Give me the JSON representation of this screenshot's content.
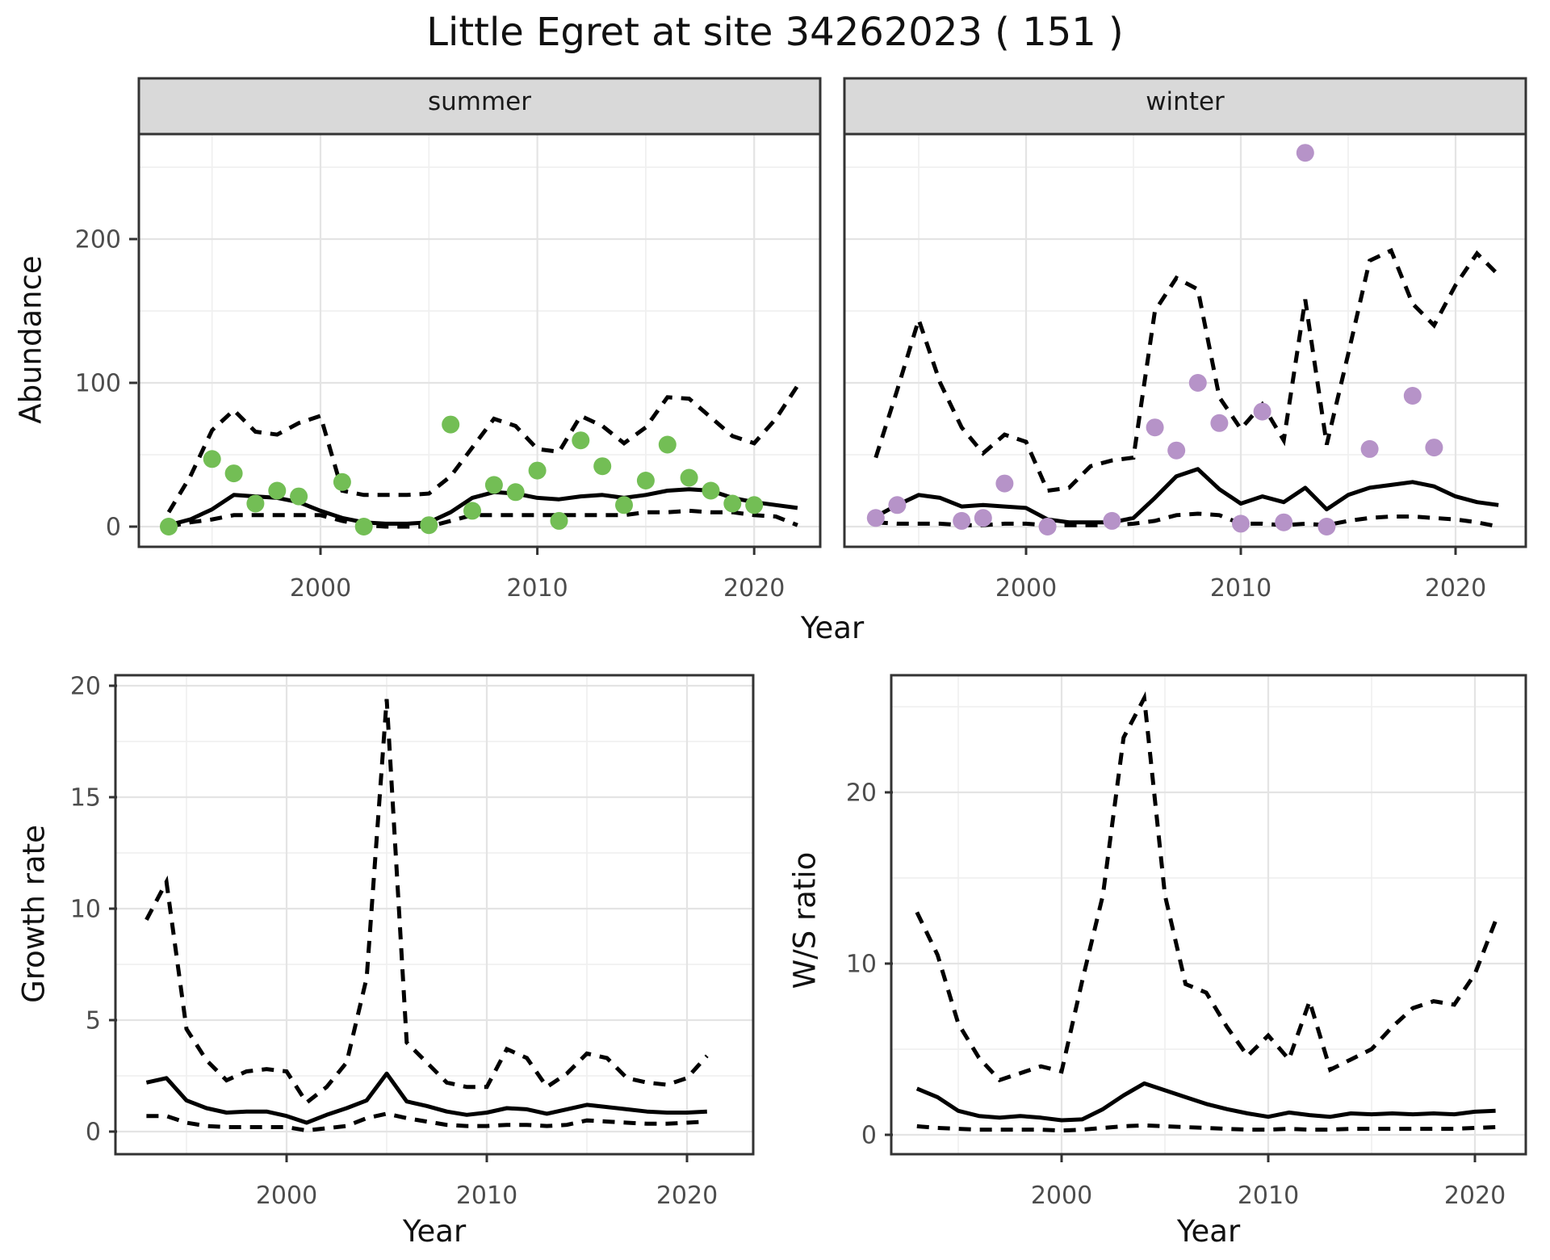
{
  "title": "Little Egret at site 34262023 ( 151 )",
  "colors": {
    "summer_point": "#73BE55",
    "winter_point": "#B693C8",
    "line": "#000000",
    "strip_bg": "#D9D9D9",
    "panel_border": "#333333",
    "grid_major": "#E4E4E4",
    "grid_minor": "#F0F0F0",
    "tick_text": "#4D4D4D"
  },
  "chart_data": [
    {
      "id": "abundance_by_season",
      "type": "line",
      "xlabel": "Year",
      "ylabel": "Abundance",
      "yticks": [
        0,
        100,
        200
      ],
      "yminor": [
        50,
        150,
        250
      ],
      "xticks": [
        2000,
        2010,
        2020
      ],
      "xminor": [
        1995,
        2005,
        2015
      ],
      "ylim": [
        -14,
        273
      ],
      "xlim": [
        1991.5,
        2023.2
      ],
      "legend": "none",
      "facets": [
        {
          "label": "summer",
          "point_color": "#73BE55",
          "points": {
            "years": [
              1993,
              1995,
              1996,
              1997,
              1998,
              1999,
              2001,
              2002,
              2005,
              2006,
              2007,
              2008,
              2009,
              2010,
              2011,
              2012,
              2013,
              2014,
              2015,
              2016,
              2017,
              2018,
              2019,
              2020
            ],
            "values": [
              0,
              47,
              37,
              16,
              25,
              21,
              31,
              0,
              1,
              71,
              11,
              29,
              24,
              39,
              4,
              60,
              42,
              15,
              32,
              57,
              34,
              25,
              16,
              15
            ]
          },
          "mean": {
            "years": [
              1993,
              1994,
              1995,
              1996,
              1997,
              1998,
              1999,
              2000,
              2001,
              2002,
              2003,
              2004,
              2005,
              2006,
              2007,
              2008,
              2009,
              2010,
              2011,
              2012,
              2013,
              2014,
              2015,
              2016,
              2017,
              2018,
              2019,
              2020,
              2021,
              2022
            ],
            "values": [
              1,
              5,
              12,
              22,
              21,
              20,
              17,
              11,
              6,
              3,
              2,
              2,
              3,
              10,
              20,
              24,
              23,
              20,
              19,
              21,
              22,
              20,
              22,
              25,
              26,
              25,
              20,
              17,
              15,
              13
            ]
          },
          "upper": {
            "years": [
              1993,
              1994,
              1995,
              1996,
              1997,
              1998,
              1999,
              2000,
              2001,
              2002,
              2003,
              2004,
              2005,
              2006,
              2007,
              2008,
              2009,
              2010,
              2011,
              2012,
              2013,
              2014,
              2015,
              2016,
              2017,
              2018,
              2019,
              2020,
              2021,
              2022
            ],
            "values": [
              10,
              35,
              67,
              81,
              66,
              64,
              72,
              77,
              25,
              22,
              22,
              22,
              23,
              35,
              55,
              75,
              70,
              54,
              52,
              77,
              70,
              58,
              69,
              90,
              89,
              76,
              63,
              58,
              75,
              98
            ]
          },
          "lower": {
            "years": [
              1993,
              1994,
              1995,
              1996,
              1997,
              1998,
              1999,
              2000,
              2001,
              2002,
              2003,
              2004,
              2005,
              2006,
              2007,
              2008,
              2009,
              2010,
              2011,
              2012,
              2013,
              2014,
              2015,
              2016,
              2017,
              2018,
              2019,
              2020,
              2021,
              2022
            ],
            "values": [
              0,
              3,
              5,
              8,
              8,
              8,
              8,
              8,
              4,
              1,
              0,
              0,
              0,
              4,
              8,
              8,
              8,
              8,
              8,
              8,
              8,
              8,
              10,
              10,
              11,
              10,
              10,
              8,
              7,
              1
            ]
          }
        },
        {
          "label": "winter",
          "point_color": "#B693C8",
          "points": {
            "years": [
              1993,
              1994,
              1997,
              1998,
              1999,
              2001,
              2004,
              2006,
              2007,
              2008,
              2009,
              2010,
              2011,
              2012,
              2013,
              2014,
              2016,
              2018,
              2019
            ],
            "values": [
              6,
              15,
              4,
              6,
              30,
              0,
              4,
              69,
              53,
              100,
              72,
              2,
              80,
              3,
              260,
              0,
              54,
              91,
              55
            ]
          },
          "mean": {
            "years": [
              1993,
              1994,
              1995,
              1996,
              1997,
              1998,
              1999,
              2000,
              2001,
              2002,
              2003,
              2004,
              2005,
              2006,
              2007,
              2008,
              2009,
              2010,
              2011,
              2012,
              2013,
              2014,
              2015,
              2016,
              2017,
              2018,
              2019,
              2020,
              2021,
              2022
            ],
            "values": [
              7,
              15,
              22,
              20,
              14,
              15,
              14,
              13,
              5,
              3,
              3,
              3,
              6,
              20,
              35,
              40,
              26,
              16,
              21,
              17,
              27,
              12,
              22,
              27,
              29,
              31,
              28,
              21,
              17,
              15
            ]
          },
          "upper": {
            "years": [
              1993,
              1994,
              1995,
              1996,
              1997,
              1998,
              1999,
              2000,
              2001,
              2002,
              2003,
              2004,
              2005,
              2006,
              2007,
              2008,
              2009,
              2010,
              2011,
              2012,
              2013,
              2014,
              2015,
              2016,
              2017,
              2018,
              2019,
              2020,
              2021,
              2022
            ],
            "values": [
              48,
              95,
              144,
              100,
              69,
              51,
              64,
              59,
              25,
              27,
              42,
              46,
              48,
              150,
              173,
              165,
              90,
              68,
              85,
              60,
              158,
              57,
              120,
              185,
              192,
              155,
              140,
              168,
              190,
              175
            ]
          },
          "lower": {
            "years": [
              1993,
              1994,
              1995,
              1996,
              1997,
              1998,
              1999,
              2000,
              2001,
              2002,
              2003,
              2004,
              2005,
              2006,
              2007,
              2008,
              2009,
              2010,
              2011,
              2012,
              2013,
              2014,
              2015,
              2016,
              2017,
              2018,
              2019,
              2020,
              2021,
              2022
            ],
            "values": [
              3,
              2,
              2,
              2,
              1,
              1,
              2,
              2,
              1,
              1,
              1,
              1,
              2,
              4,
              8,
              9,
              8,
              2,
              2,
              1,
              2,
              1,
              4,
              6,
              7,
              7,
              6,
              5,
              3,
              0
            ]
          }
        }
      ]
    },
    {
      "id": "growth_rate",
      "type": "line",
      "xlabel": "Year",
      "ylabel": "Growth rate",
      "yticks": [
        0,
        5,
        10,
        15,
        20
      ],
      "yminor": [
        2.5,
        7.5,
        12.5,
        17.5
      ],
      "xticks": [
        2000,
        2010,
        2020
      ],
      "xminor": [
        1995,
        2005,
        2015
      ],
      "ylim": [
        -1.0,
        20.5
      ],
      "xlim": [
        1991.5,
        2023.3
      ],
      "mean": {
        "years": [
          1993,
          1994,
          1995,
          1996,
          1997,
          1998,
          1999,
          2000,
          2001,
          2002,
          2003,
          2004,
          2005,
          2006,
          2007,
          2008,
          2009,
          2010,
          2011,
          2012,
          2013,
          2014,
          2015,
          2016,
          2017,
          2018,
          2019,
          2020,
          2021
        ],
        "values": [
          2.2,
          2.4,
          1.4,
          1.05,
          0.85,
          0.9,
          0.9,
          0.7,
          0.4,
          0.75,
          1.05,
          1.4,
          2.6,
          1.35,
          1.15,
          0.9,
          0.75,
          0.85,
          1.05,
          1.0,
          0.8,
          1.0,
          1.2,
          1.1,
          1.0,
          0.9,
          0.85,
          0.85,
          0.9
        ]
      },
      "upper": {
        "years": [
          1993,
          1994,
          1995,
          1996,
          1997,
          1998,
          1999,
          2000,
          2001,
          2002,
          2003,
          2004,
          2005,
          2006,
          2007,
          2008,
          2009,
          2010,
          2011,
          2012,
          2013,
          2014,
          2015,
          2016,
          2017,
          2018,
          2019,
          2020,
          2021
        ],
        "values": [
          9.5,
          11.2,
          4.6,
          3.2,
          2.3,
          2.7,
          2.8,
          2.7,
          1.3,
          2.0,
          3.1,
          6.9,
          19.4,
          4.0,
          3.1,
          2.2,
          2.0,
          2.0,
          3.7,
          3.3,
          2.0,
          2.6,
          3.5,
          3.3,
          2.4,
          2.2,
          2.1,
          2.4,
          3.4
        ]
      },
      "lower": {
        "years": [
          1993,
          1994,
          1995,
          1996,
          1997,
          1998,
          1999,
          2000,
          2001,
          2002,
          2003,
          2004,
          2005,
          2006,
          2007,
          2008,
          2009,
          2010,
          2011,
          2012,
          2013,
          2014,
          2015,
          2016,
          2017,
          2018,
          2019,
          2020,
          2021
        ],
        "values": [
          0.7,
          0.7,
          0.4,
          0.25,
          0.2,
          0.2,
          0.2,
          0.2,
          0.05,
          0.15,
          0.25,
          0.6,
          0.8,
          0.6,
          0.45,
          0.3,
          0.25,
          0.25,
          0.3,
          0.3,
          0.25,
          0.3,
          0.5,
          0.45,
          0.4,
          0.35,
          0.35,
          0.4,
          0.45
        ]
      }
    },
    {
      "id": "winter_summer_ratio",
      "type": "line",
      "xlabel": "Year",
      "ylabel": "W/S ratio",
      "yticks": [
        0,
        10,
        20
      ],
      "yminor": [
        5,
        15,
        25
      ],
      "xticks": [
        2000,
        2010,
        2020
      ],
      "xminor": [
        1995,
        2005,
        2015
      ],
      "ylim": [
        -1.1,
        26.8
      ],
      "xlim": [
        1991.8,
        2023.5
      ],
      "mean": {
        "years": [
          1993,
          1994,
          1995,
          1996,
          1997,
          1998,
          1999,
          2000,
          2001,
          2002,
          2003,
          2004,
          2005,
          2006,
          2007,
          2008,
          2009,
          2010,
          2011,
          2012,
          2013,
          2014,
          2015,
          2016,
          2017,
          2018,
          2019,
          2020,
          2021
        ],
        "values": [
          2.7,
          2.2,
          1.4,
          1.1,
          1.0,
          1.1,
          1.0,
          0.85,
          0.9,
          1.5,
          2.3,
          3.0,
          2.6,
          2.2,
          1.8,
          1.5,
          1.25,
          1.05,
          1.3,
          1.15,
          1.05,
          1.25,
          1.2,
          1.25,
          1.2,
          1.25,
          1.2,
          1.35,
          1.4
        ]
      },
      "upper": {
        "years": [
          1993,
          1994,
          1995,
          1996,
          1997,
          1998,
          1999,
          2000,
          2001,
          2002,
          2003,
          2004,
          2005,
          2006,
          2007,
          2008,
          2009,
          2010,
          2011,
          2012,
          2013,
          2014,
          2015,
          2016,
          2017,
          2018,
          2019,
          2020,
          2021
        ],
        "values": [
          13,
          10.5,
          6.5,
          4.5,
          3.2,
          3.6,
          4.0,
          3.7,
          9.0,
          14,
          23.2,
          25.5,
          14,
          8.8,
          8.3,
          6.3,
          4.6,
          5.8,
          4.4,
          7.8,
          3.8,
          4.4,
          5.0,
          6.3,
          7.4,
          7.8,
          7.6,
          9.4,
          12.5
        ]
      },
      "lower": {
        "years": [
          1993,
          1994,
          1995,
          1996,
          1997,
          1998,
          1999,
          2000,
          2001,
          2002,
          2003,
          2004,
          2005,
          2006,
          2007,
          2008,
          2009,
          2010,
          2011,
          2012,
          2013,
          2014,
          2015,
          2016,
          2017,
          2018,
          2019,
          2020,
          2021
        ],
        "values": [
          0.5,
          0.4,
          0.35,
          0.3,
          0.3,
          0.3,
          0.3,
          0.25,
          0.3,
          0.4,
          0.5,
          0.55,
          0.5,
          0.45,
          0.4,
          0.35,
          0.3,
          0.3,
          0.35,
          0.3,
          0.3,
          0.35,
          0.35,
          0.35,
          0.35,
          0.35,
          0.35,
          0.4,
          0.45
        ]
      }
    }
  ]
}
